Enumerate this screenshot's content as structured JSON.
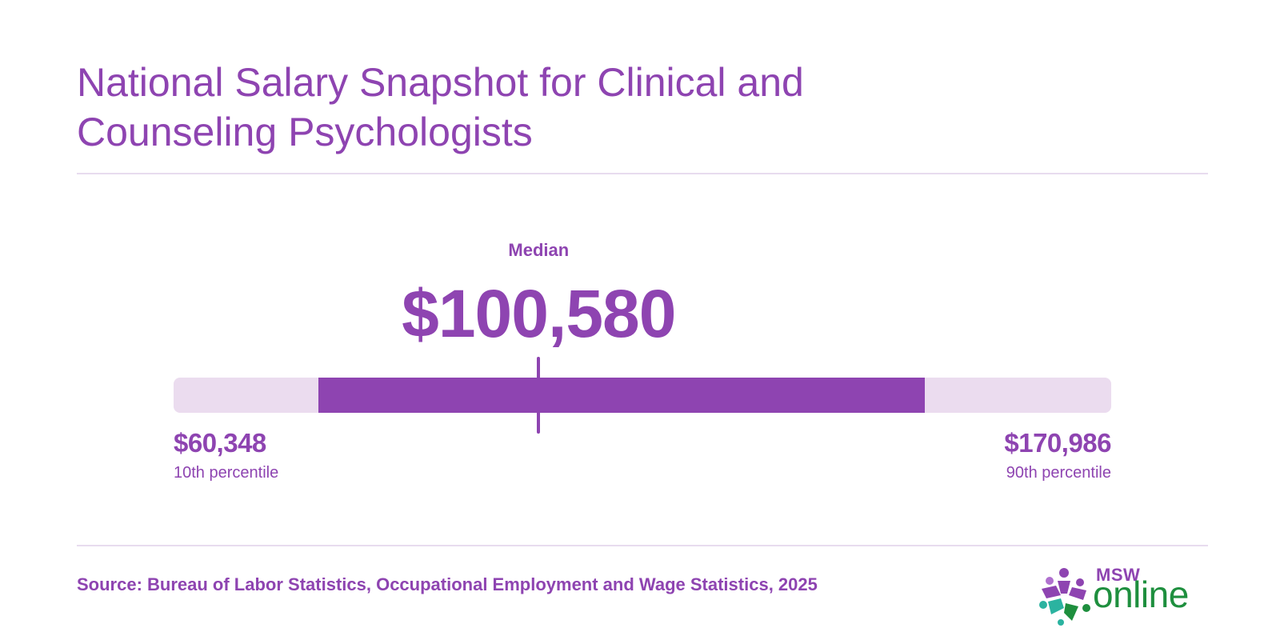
{
  "title": "National Salary Snapshot for Clinical and Counseling Psychologists",
  "chart_data": {
    "type": "range",
    "scale_min": 34000,
    "scale_max": 205000,
    "percentile_10": 60348,
    "median": 100580,
    "percentile_90": 170986,
    "median_label": "Median",
    "median_value_text": "$100,580",
    "low_value_text": "$60,348",
    "low_label": "10th percentile",
    "high_value_text": "$170,986",
    "high_label": "90th percentile"
  },
  "source": "Source: Bureau of Labor Statistics, Occupational Employment and Wage Statistics, 2025",
  "logo": {
    "line1": "MSW",
    "line2": "online",
    "icon": "star-people-logo-icon"
  },
  "colors": {
    "accent": "#8e44b1",
    "track": "#ebdcef",
    "rule": "#e8dcef",
    "logo_green": "#1e8f3e",
    "logo_teal": "#2bb3a0"
  }
}
